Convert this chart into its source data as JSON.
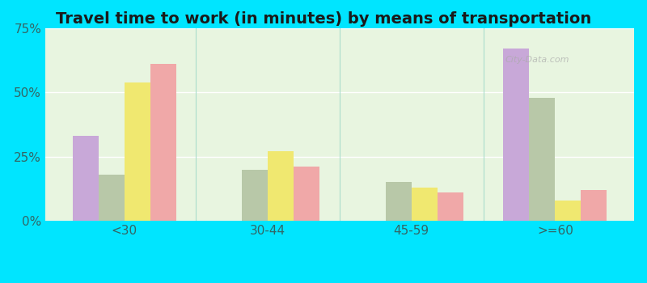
{
  "title": "Travel time to work (in minutes) by means of transportation",
  "categories": [
    "<30",
    "30-44",
    "45-59",
    ">=60"
  ],
  "series": {
    "Public transportation - Bloomingdale": [
      33,
      0,
      0,
      67
    ],
    "Public transportation - New Jersey": [
      18,
      20,
      15,
      48
    ],
    "Other means - Bloomingdale": [
      54,
      27,
      13,
      8
    ],
    "Other means - New Jersey": [
      61,
      21,
      11,
      12
    ]
  },
  "colors": {
    "Public transportation - Bloomingdale": "#c8a8d8",
    "Public transportation - New Jersey": "#b8c8a8",
    "Other means - Bloomingdale": "#f0e870",
    "Other means - New Jersey": "#f0a8a8"
  },
  "ylim": [
    0,
    75
  ],
  "yticks": [
    0,
    25,
    50,
    75
  ],
  "ytick_labels": [
    "0%",
    "25%",
    "50%",
    "75%"
  ],
  "background_color": "#e8f5e0",
  "outer_background": "#00e5ff",
  "title_fontsize": 14,
  "legend_fontsize": 9
}
